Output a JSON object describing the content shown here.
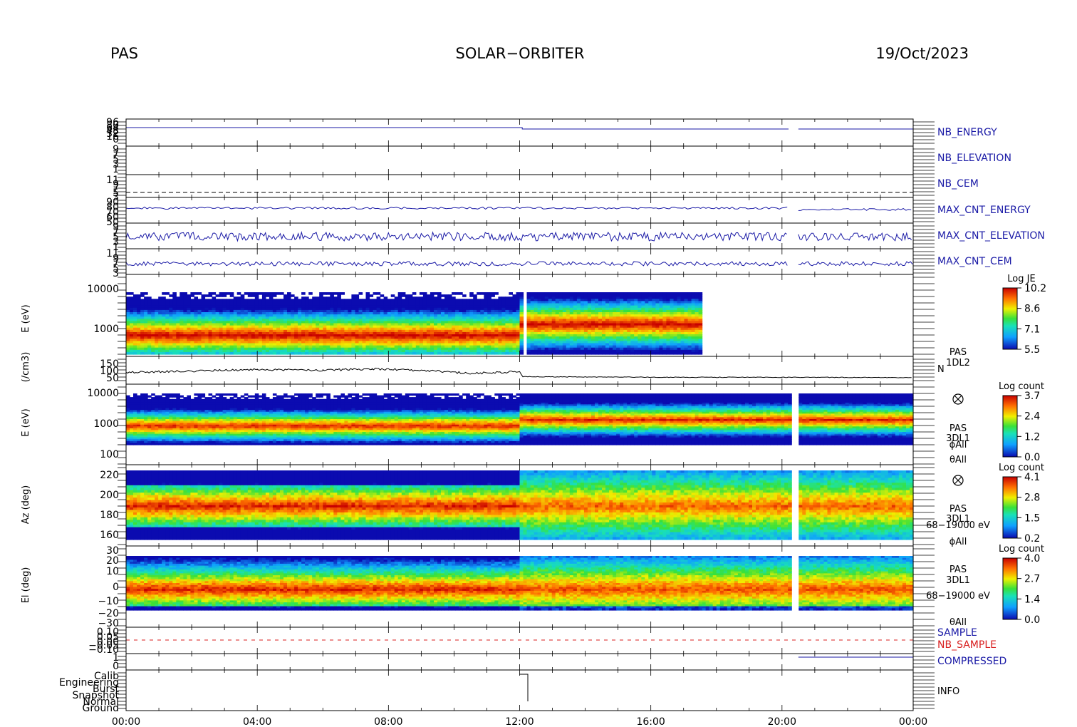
{
  "header": {
    "left": "PAS",
    "center": "SOLAR−ORBITER",
    "right": "19/Oct/2023"
  },
  "time_axis": [
    "00:00",
    "04:00",
    "08:00",
    "12:00",
    "16:00",
    "20:00",
    "00:00"
  ],
  "panels": {
    "nb_energy": {
      "label": "NB_ENERGY",
      "ticks": [
        "96",
        "80",
        "64",
        "48",
        "32",
        "16",
        "0"
      ]
    },
    "nb_elevation": {
      "label": "NB_ELEVATION",
      "ticks": [
        "9",
        "7",
        "5",
        "3",
        "1"
      ]
    },
    "nb_cem": {
      "label": "NB_CEM",
      "ticks": [
        "11",
        "9",
        "7",
        "5",
        "3"
      ]
    },
    "max_cnt_energy": {
      "label": "MAX_CNT_ENERGY",
      "ticks": [
        "90",
        "80",
        "70",
        "60",
        "50"
      ]
    },
    "max_cnt_elevation": {
      "label": "MAX_CNT_ELEVATION",
      "ticks": [
        "9",
        "7",
        "5",
        "3",
        "1"
      ]
    },
    "max_cnt_cem": {
      "label": "MAX_CNT_CEM",
      "ticks": [
        "11",
        "9",
        "7",
        "5",
        "3"
      ]
    },
    "energy_1dl2": {
      "ylabel": "E (eV)",
      "ticks": [
        "10000",
        "1000"
      ],
      "colorbar": {
        "title": "Log JE",
        "ticks": [
          "10.2",
          "8.6",
          "7.1",
          "5.5"
        ]
      }
    },
    "density": {
      "ylabel": "(/cm3)",
      "ticks": [
        "150",
        "100",
        "50"
      ],
      "label_lines": [
        "PAS",
        "1DL2"
      ],
      "side_label": "N"
    },
    "energy_3dl1": {
      "ylabel": "E (eV)",
      "ticks": [
        "10000",
        "1000",
        "100"
      ],
      "colorbar": {
        "title": "Log count",
        "ticks": [
          "3.7",
          "2.4",
          "1.2",
          "0.0"
        ]
      },
      "label_lines": [
        "PAS",
        "3DL1",
        "ϕAll",
        "θAll"
      ]
    },
    "azimuth": {
      "ylabel": "Az (deg)",
      "ticks": [
        "220",
        "200",
        "180",
        "160"
      ],
      "colorbar": {
        "title": "Log count",
        "ticks": [
          "4.1",
          "2.8",
          "1.5",
          "0.2"
        ]
      },
      "label_lines": [
        "PAS",
        "3DL1",
        "68−19000 eV",
        "ϕAll"
      ]
    },
    "elevation": {
      "ylabel": "El (deg)",
      "ticks": [
        "30",
        "20",
        "10",
        "0",
        "−10",
        "−20",
        "−30"
      ],
      "colorbar": {
        "title": "Log count",
        "ticks": [
          "4.0",
          "2.7",
          "1.4",
          "0.0"
        ]
      },
      "label_lines": [
        "PAS",
        "3DL1",
        "68−19000 eV",
        "θAll"
      ]
    },
    "sample": {
      "label": "SAMPLE",
      "label2": "NB_SAMPLE",
      "ticks": [
        "0.10",
        "0.05",
        "0.00",
        "−0.05",
        "−0.10"
      ]
    },
    "compressed": {
      "label": "COMPRESSED",
      "ticks": [
        "1",
        "0"
      ]
    },
    "info": {
      "label": "INFO",
      "ticks": [
        "Calib",
        "Engineering",
        "Burst",
        "Snapshot",
        "Normal",
        "Ground"
      ]
    }
  },
  "colors": {
    "trace_blue": "#1a1aa6",
    "red": "#d81e1e"
  },
  "chart_data": [
    {
      "type": "line",
      "title": "NB_ENERGY",
      "x_hours": [
        0,
        6,
        6.01,
        12,
        12.1,
        18,
        18.01,
        20.2,
        20.5,
        24
      ],
      "ylim": [
        0,
        96
      ]
    },
    {
      "type": "line",
      "title": "MAX_CNT_ENERGY",
      "ylim": [
        50,
        90
      ]
    },
    {
      "type": "line",
      "title": "MAX_CNT_ELEVATION",
      "ylim": [
        1,
        9
      ]
    },
    {
      "type": "line",
      "title": "MAX_CNT_CEM",
      "ylim": [
        3,
        11
      ]
    },
    {
      "type": "heatmap",
      "title": "Log JE",
      "ylabel": "E (eV)",
      "xlim_hours": [
        0,
        24
      ],
      "data_end_hour": 17.5,
      "gap_hour": 12.1,
      "ylim": [
        100,
        10000
      ],
      "zlim": [
        5.5,
        10.2
      ]
    },
    {
      "type": "line",
      "title": "N",
      "ylabel": "(/cm3)",
      "x_hours": [
        0,
        2,
        4,
        6,
        7.5,
        9,
        10.5,
        12,
        12.1,
        16,
        20,
        24
      ],
      "values": [
        70,
        80,
        90,
        85,
        95,
        85,
        65,
        75,
        42,
        38,
        38,
        36
      ],
      "ylim": [
        25,
        160
      ]
    },
    {
      "type": "heatmap",
      "title": "Log count",
      "ylabel": "E (eV)",
      "ylim": [
        100,
        10000
      ],
      "zlim": [
        0.0,
        3.7
      ],
      "gap_hours": [
        20.25,
        20.5
      ]
    },
    {
      "type": "heatmap",
      "title": "Log count",
      "ylabel": "Az (deg)",
      "ylim": [
        150,
        230
      ],
      "zlim": [
        0.2,
        4.1
      ]
    },
    {
      "type": "heatmap",
      "title": "Log count",
      "ylabel": "El (deg)",
      "ylim": [
        -30,
        30
      ],
      "zlim": [
        0.0,
        4.0
      ]
    },
    {
      "type": "line",
      "title": "INFO",
      "x_hours": [
        0,
        12,
        12,
        12.3,
        12.3,
        24
      ],
      "states": [
        "Normal",
        "Normal",
        "Calib",
        "Calib",
        "Ground",
        "Ground"
      ]
    }
  ]
}
